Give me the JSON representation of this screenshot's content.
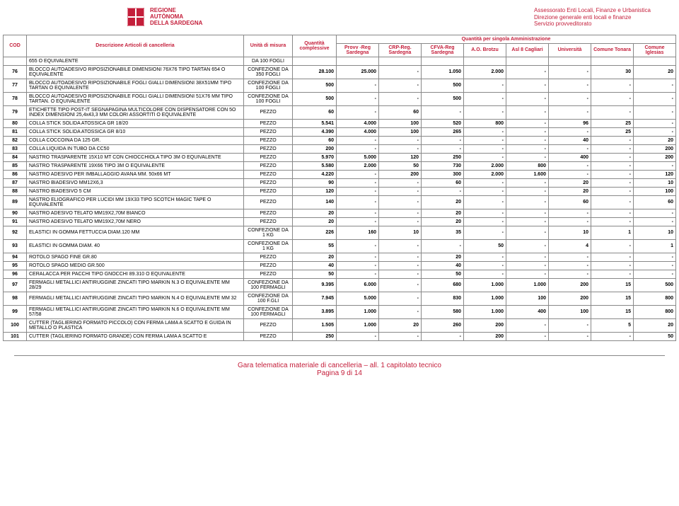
{
  "header": {
    "left": {
      "l1": "REGIONE",
      "l2": "AUTÒNOMA",
      "l3": "DELLA SARDEGNA"
    },
    "right": {
      "l1": "Assessorato Enti Locali, Finanze e Urbanistica",
      "l2": "Direzione generale enti locali e finanze",
      "l3": "Servizio provveditorato"
    }
  },
  "thead": {
    "cod": "COD",
    "desc": "Descrizione Articoli di cancelleria",
    "unit": "Unità di misura",
    "qty": "Quantità complessive",
    "group": "Quantità per singola Amministrazione",
    "admins": [
      "Provv -Reg Sardegna",
      "CRP-Reg. Sardegna",
      "CFVA-Reg Sardegna",
      "A.O. Brotzu",
      "Asl 8 Cagliari",
      "Università",
      "Comune Tonara",
      "Comune Iglesias"
    ]
  },
  "rows": [
    {
      "cod": "",
      "desc": "655 O EQUIVALENTE",
      "unit": "DA 100 FOGLI",
      "qty": "",
      "v": [
        "",
        "",
        "",
        "",
        "",
        "",
        "",
        ""
      ],
      "partial": true
    },
    {
      "cod": "76",
      "desc": "BLOCCO AUTOADESIVO RIPOSIZIONABILE DIMENSIONI 76X76 TIPO TARTAN 654 O EQUIVALENTE",
      "unit": "CONFEZIONE DA 350 FOGLI",
      "qty": "28.100",
      "v": [
        "25.000",
        "-",
        "1.050",
        "2.000",
        "-",
        "-",
        "30",
        "20"
      ]
    },
    {
      "cod": "77",
      "desc": "BLOCCO AUTOADESIVO RIPOSIZIONABILE FOGLI GIALLI DIMENSIONI 38X51MM TIPO TARTAN O EQUIVALENTE",
      "unit": "CONFEZIONE DA 100 FOGLI",
      "qty": "500",
      "v": [
        "-",
        "-",
        "500",
        "-",
        "-",
        "-",
        "-",
        "-"
      ]
    },
    {
      "cod": "78",
      "desc": "BLOCCO AUTOADESIVO RIPOSIZIONABILE FOGLI GIALLI DIMENSIONI 51X76 MM TIPO TARTAN. O EQUIVALENTE",
      "unit": "CONFEZIONE DA 100 FOGLI",
      "qty": "500",
      "v": [
        "-",
        "-",
        "500",
        "-",
        "-",
        "-",
        "-",
        "-"
      ]
    },
    {
      "cod": "79",
      "desc": "ETICHETTE TIPO POST-IT SEGNAPAGINA MULTICOLORE CON DISPENSATORE CON 5O INDEX DIMENSIONI 25,4x43,3 MM COLORI ASSORTITI O EQUIVALENTE",
      "unit": "PEZZO",
      "qty": "60",
      "v": [
        "-",
        "60",
        "-",
        "-",
        "-",
        "-",
        "-",
        "-"
      ]
    },
    {
      "cod": "80",
      "desc": "COLLA STICK SOLIDA ATOSSICA GR 18/20",
      "unit": "PEZZO",
      "qty": "5.541",
      "v": [
        "4.000",
        "100",
        "520",
        "800",
        "-",
        "96",
        "25",
        "-"
      ]
    },
    {
      "cod": "81",
      "desc": "COLLA STICK SOLIDA ATOSSICA GR 8/10",
      "unit": "PEZZO",
      "qty": "4.390",
      "v": [
        "4.000",
        "100",
        "265",
        "-",
        "-",
        "-",
        "25",
        "-"
      ]
    },
    {
      "cod": "82",
      "desc": "COLLA COCCOINA DA 125 GR.",
      "unit": "PEZZO",
      "qty": "60",
      "v": [
        "-",
        "-",
        "-",
        "-",
        "-",
        "40",
        "-",
        "20"
      ]
    },
    {
      "cod": "83",
      "desc": "COLLA LIQUIDA IN TUBO DA CC50",
      "unit": "PEZZO",
      "qty": "200",
      "v": [
        "-",
        "-",
        "-",
        "-",
        "-",
        "-",
        "-",
        "200"
      ]
    },
    {
      "cod": "84",
      "desc": "NASTRO TRASPARENTE 15X10 MT CON CHIOCCHIOLA TIPO 3M O EQUIVALENTE",
      "unit": "PEZZO",
      "qty": "5.970",
      "v": [
        "5.000",
        "120",
        "250",
        "-",
        "-",
        "400",
        "-",
        "200"
      ]
    },
    {
      "cod": "85",
      "desc": "NASTRO TRASPARENTE 19X66 TIPO 3M O EQUIVALENTE",
      "unit": "PEZZO",
      "qty": "5.580",
      "v": [
        "2.000",
        "50",
        "730",
        "2.000",
        "800",
        "-",
        "-",
        "-"
      ]
    },
    {
      "cod": "86",
      "desc": "NASTRO ADESIVO PER IMBALLAGGIO AVANA MM. 50x66 MT",
      "unit": "PEZZO",
      "qty": "4.220",
      "v": [
        "-",
        "200",
        "300",
        "2.000",
        "1.600",
        "-",
        "-",
        "120"
      ]
    },
    {
      "cod": "87",
      "desc": "NASTRO BIADESIVO MM12X6,3",
      "unit": "PEZZO",
      "qty": "90",
      "v": [
        "-",
        "-",
        "60",
        "-",
        "-",
        "20",
        "-",
        "10"
      ]
    },
    {
      "cod": "88",
      "desc": "NASTRO BIADESIVO 5 CM",
      "unit": "PEZZO",
      "qty": "120",
      "v": [
        "-",
        "-",
        "-",
        "-",
        "-",
        "20",
        "-",
        "100"
      ]
    },
    {
      "cod": "89",
      "desc": "NASTRO ELIOGRAFICO PER LUCIDI MM 19X33 TIPO SCOTCH MAGIC TAPE O EQUIVALENTE",
      "unit": "PEZZO",
      "qty": "140",
      "v": [
        "-",
        "-",
        "20",
        "-",
        "-",
        "60",
        "-",
        "60"
      ]
    },
    {
      "cod": "90",
      "desc": "NASTRO ADESIVO TELATO MM19X2,70M BIANCO",
      "unit": "PEZZO",
      "qty": "20",
      "v": [
        "-",
        "-",
        "20",
        "-",
        "-",
        "-",
        "-",
        "-"
      ]
    },
    {
      "cod": "91",
      "desc": "NASTRO ADESIVO TELATO MM19X2,70M NERO",
      "unit": "PEZZO",
      "qty": "20",
      "v": [
        "-",
        "-",
        "20",
        "-",
        "-",
        "-",
        "-",
        "-"
      ]
    },
    {
      "cod": "92",
      "desc": "ELASTICI IN GOMMA FETTUCCIA DIAM.120 MM",
      "unit": "CONFEZIONE DA 1 KG",
      "qty": "226",
      "v": [
        "160",
        "10",
        "35",
        "-",
        "-",
        "10",
        "1",
        "10"
      ]
    },
    {
      "cod": "93",
      "desc": "ELASTICI IN GOMMA DIAM. 40",
      "unit": "CONFEZIONE DA 1 KG",
      "qty": "55",
      "v": [
        "-",
        "-",
        "-",
        "50",
        "-",
        "4",
        "-",
        "1"
      ]
    },
    {
      "cod": "94",
      "desc": "ROTOLO SPAGO FINE GR.80",
      "unit": "PEZZO",
      "qty": "20",
      "v": [
        "-",
        "-",
        "20",
        "-",
        "-",
        "-",
        "-",
        "-"
      ]
    },
    {
      "cod": "95",
      "desc": "ROTOLO SPAGO MEDIO GR.500",
      "unit": "PEZZO",
      "qty": "40",
      "v": [
        "-",
        "-",
        "40",
        "-",
        "-",
        "-",
        "-",
        "-"
      ]
    },
    {
      "cod": "96",
      "desc": "CERALACCA PER PACCHI TIPO GNOCCHI 89.310 O EQUIVALENTE",
      "unit": "PEZZO",
      "qty": "50",
      "v": [
        "-",
        "-",
        "50",
        "-",
        "-",
        "-",
        "-",
        "-"
      ]
    },
    {
      "cod": "97",
      "desc": "FERMAGLI METALLICI ANTIRUGGINE ZINCATI TIPO MARKIN N.3 O EQUIVALENTE MM 28/29",
      "unit": "CONFEZIONE DA 100 FERMAGLI",
      "qty": "9.395",
      "v": [
        "6.000",
        "-",
        "680",
        "1.000",
        "1.000",
        "200",
        "15",
        "500"
      ]
    },
    {
      "cod": "98",
      "desc": "FERMAGLI METALLICI ANTIRUGGINE ZINCATI TIPO MARKIN N.4 O EQUIVALENTE MM 32",
      "unit": "CONFEZIONE DA 100 F.GLI",
      "qty": "7.945",
      "v": [
        "5.000",
        "-",
        "830",
        "1.000",
        "100",
        "200",
        "15",
        "800"
      ]
    },
    {
      "cod": "99",
      "desc": "FERMAGLI METALLICI ANTIRUGGINE ZINCATI TIPO MARKIN N.6 O EQUIVALENTE MM 57/58",
      "unit": "CONFEZIONE DA 100 FERMAGLI",
      "qty": "3.895",
      "v": [
        "1.000",
        "-",
        "580",
        "1.000",
        "400",
        "100",
        "15",
        "800"
      ]
    },
    {
      "cod": "100",
      "desc": "CUTTER (TAGLIERINO FORMATO PICCOLO) CON FERMA LAMA A SCATTO E GUIDA IN METALLO O PLASTICA",
      "unit": "PEZZO",
      "qty": "1.505",
      "v": [
        "1.000",
        "20",
        "260",
        "200",
        "-",
        "-",
        "5",
        "20"
      ]
    },
    {
      "cod": "101",
      "desc": "CUTTER (TAGLIERINO FORMATO GRANDE) CON FERMA LAMA A SCATTO E",
      "unit": "PEZZO",
      "qty": "250",
      "v": [
        "-",
        "-",
        "-",
        "200",
        "-",
        "-",
        "-",
        "50"
      ]
    }
  ],
  "footer": {
    "l1": "Gara telematica materiale di cancelleria – all. 1 capitolato tecnico",
    "l2": "Pagina 9 di 14"
  }
}
